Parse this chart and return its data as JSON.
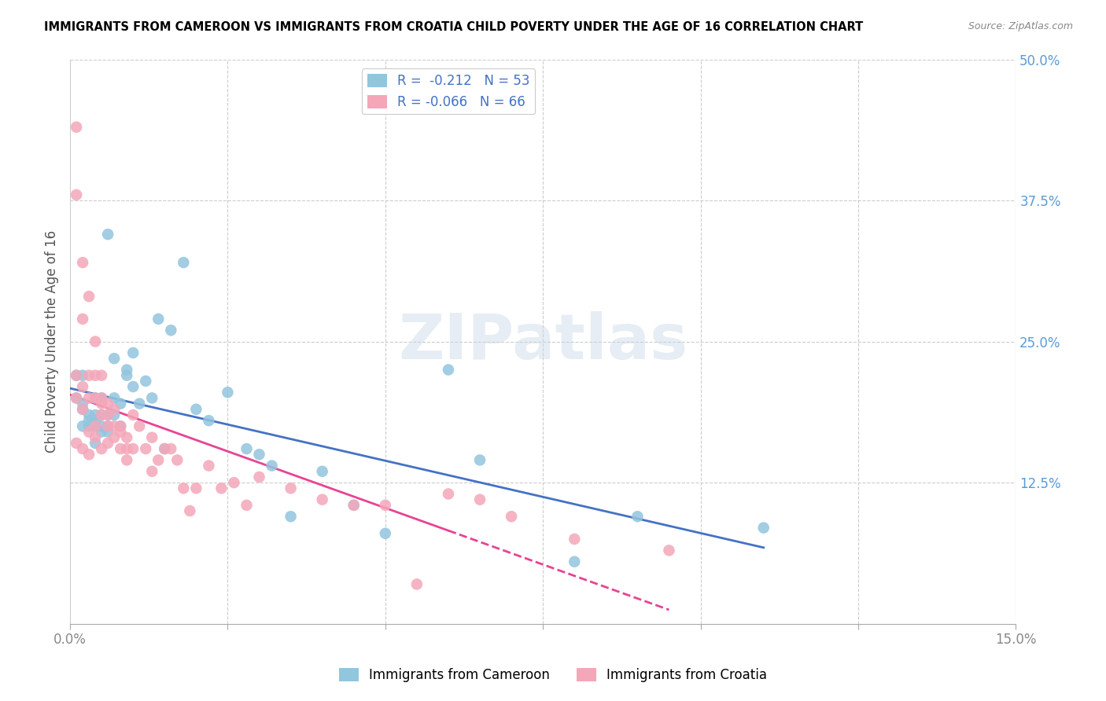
{
  "title": "IMMIGRANTS FROM CAMEROON VS IMMIGRANTS FROM CROATIA CHILD POVERTY UNDER THE AGE OF 16 CORRELATION CHART",
  "source": "Source: ZipAtlas.com",
  "ylabel": "Child Poverty Under the Age of 16",
  "xlim": [
    0.0,
    0.15
  ],
  "ylim": [
    0.0,
    0.5
  ],
  "xtick_positions": [
    0.0,
    0.025,
    0.05,
    0.075,
    0.1,
    0.125,
    0.15
  ],
  "xtick_labels": [
    "0.0%",
    "",
    "",
    "",
    "",
    "",
    "15.0%"
  ],
  "ytick_positions": [
    0.0,
    0.125,
    0.25,
    0.375,
    0.5
  ],
  "ytick_right_labels": [
    "",
    "12.5%",
    "25.0%",
    "37.5%",
    "50.0%"
  ],
  "color_cameroon": "#92C5DE",
  "color_croatia": "#F4A7B9",
  "trendline_cameroon_color": "#4472C4",
  "trendline_croatia_color": "#E84393",
  "watermark": "ZIPatlas",
  "legend_label_cameroon": "Immigrants from Cameroon",
  "legend_label_croatia": "Immigrants from Croatia",
  "legend_r1": "R =  -0.212   N = 53",
  "legend_r2": "R = -0.066   N = 66",
  "cameroon_x": [
    0.001,
    0.001,
    0.002,
    0.002,
    0.002,
    0.002,
    0.003,
    0.003,
    0.003,
    0.004,
    0.004,
    0.004,
    0.004,
    0.004,
    0.005,
    0.005,
    0.005,
    0.005,
    0.006,
    0.006,
    0.006,
    0.006,
    0.007,
    0.007,
    0.007,
    0.008,
    0.008,
    0.009,
    0.009,
    0.01,
    0.01,
    0.011,
    0.012,
    0.013,
    0.014,
    0.015,
    0.016,
    0.018,
    0.02,
    0.022,
    0.025,
    0.028,
    0.03,
    0.032,
    0.035,
    0.04,
    0.045,
    0.05,
    0.06,
    0.065,
    0.08,
    0.09,
    0.11
  ],
  "cameroon_y": [
    0.2,
    0.22,
    0.19,
    0.22,
    0.195,
    0.175,
    0.185,
    0.18,
    0.175,
    0.175,
    0.18,
    0.16,
    0.185,
    0.2,
    0.17,
    0.175,
    0.185,
    0.2,
    0.185,
    0.175,
    0.17,
    0.345,
    0.235,
    0.2,
    0.185,
    0.195,
    0.175,
    0.225,
    0.22,
    0.24,
    0.21,
    0.195,
    0.215,
    0.2,
    0.27,
    0.155,
    0.26,
    0.32,
    0.19,
    0.18,
    0.205,
    0.155,
    0.15,
    0.14,
    0.095,
    0.135,
    0.105,
    0.08,
    0.225,
    0.145,
    0.055,
    0.095,
    0.085
  ],
  "croatia_x": [
    0.001,
    0.001,
    0.001,
    0.001,
    0.001,
    0.002,
    0.002,
    0.002,
    0.002,
    0.002,
    0.003,
    0.003,
    0.003,
    0.003,
    0.003,
    0.004,
    0.004,
    0.004,
    0.004,
    0.004,
    0.005,
    0.005,
    0.005,
    0.005,
    0.005,
    0.006,
    0.006,
    0.006,
    0.006,
    0.007,
    0.007,
    0.007,
    0.008,
    0.008,
    0.008,
    0.009,
    0.009,
    0.009,
    0.01,
    0.01,
    0.011,
    0.012,
    0.013,
    0.013,
    0.014,
    0.015,
    0.016,
    0.017,
    0.018,
    0.019,
    0.02,
    0.022,
    0.024,
    0.026,
    0.028,
    0.03,
    0.035,
    0.04,
    0.045,
    0.05,
    0.055,
    0.06,
    0.065,
    0.07,
    0.08,
    0.095
  ],
  "croatia_y": [
    0.44,
    0.38,
    0.22,
    0.2,
    0.16,
    0.32,
    0.27,
    0.21,
    0.19,
    0.155,
    0.29,
    0.22,
    0.2,
    0.17,
    0.15,
    0.25,
    0.22,
    0.2,
    0.175,
    0.165,
    0.22,
    0.2,
    0.195,
    0.185,
    0.155,
    0.195,
    0.185,
    0.175,
    0.16,
    0.19,
    0.175,
    0.165,
    0.175,
    0.17,
    0.155,
    0.165,
    0.155,
    0.145,
    0.185,
    0.155,
    0.175,
    0.155,
    0.165,
    0.135,
    0.145,
    0.155,
    0.155,
    0.145,
    0.12,
    0.1,
    0.12,
    0.14,
    0.12,
    0.125,
    0.105,
    0.13,
    0.12,
    0.11,
    0.105,
    0.105,
    0.035,
    0.115,
    0.11,
    0.095,
    0.075,
    0.065
  ]
}
